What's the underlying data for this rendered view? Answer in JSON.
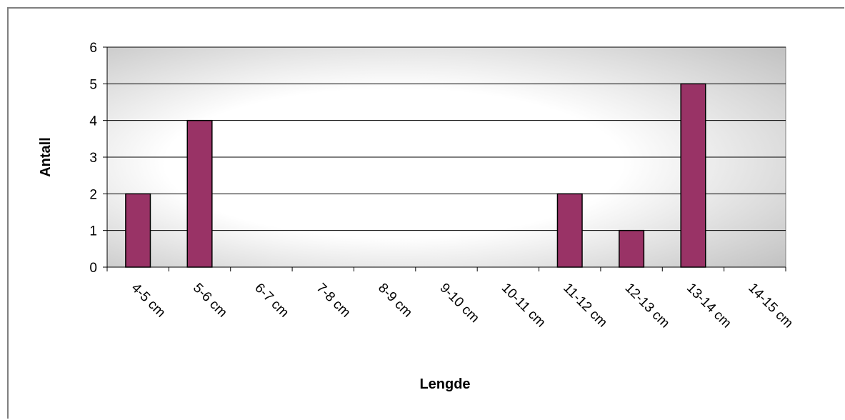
{
  "chart_data": {
    "type": "bar",
    "categories": [
      "4-5 cm",
      "5-6 cm",
      "6-7 cm",
      "7-8 cm",
      "8-9 cm",
      "9-10 cm",
      "10-11 cm",
      "11-12 cm",
      "12-13 cm",
      "13-14 cm",
      "14-15 cm"
    ],
    "values": [
      2,
      4,
      0,
      0,
      0,
      0,
      0,
      2,
      1,
      5,
      0
    ],
    "title": "",
    "xlabel": "Lengde",
    "ylabel": "Antall",
    "ylim": [
      0,
      6
    ],
    "yticks": [
      "0",
      "1",
      "2",
      "3",
      "4",
      "5",
      "6"
    ],
    "grid": true,
    "legend": "none",
    "colors": {
      "bar": "#993366",
      "bar_edge": "#000000",
      "gridline": "#000000",
      "plot_bg_light": "#ffffff",
      "plot_bg_dark": "#c0c0c0"
    }
  }
}
